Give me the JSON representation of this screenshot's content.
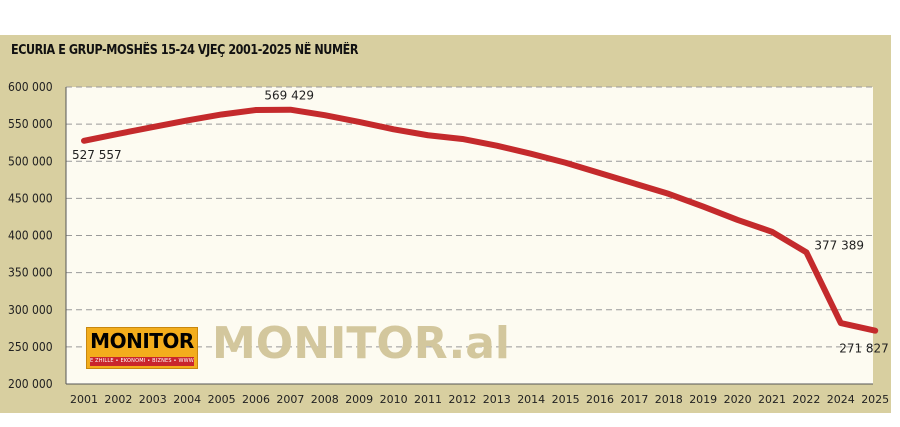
{
  "chart_data": {
    "type": "line",
    "title": "ECURIA E GRUP-MOSHËS 15-24 VJEÇ 2001-2025 NË NUMËR",
    "xlabel": "",
    "ylabel": "",
    "categories": [
      "2001",
      "2002",
      "2003",
      "2004",
      "2005",
      "2006",
      "2007",
      "2008",
      "2009",
      "2010",
      "2011",
      "2012",
      "2013",
      "2014",
      "2015",
      "2016",
      "2017",
      "2018",
      "2019",
      "2020",
      "2021",
      "2022",
      "2024",
      "2025"
    ],
    "series": [
      {
        "name": "",
        "values": [
          527557,
          537000,
          546000,
          555000,
          563000,
          569000,
          569429,
          562000,
          553000,
          543000,
          535000,
          530000,
          521000,
          510000,
          498000,
          484000,
          470000,
          456000,
          439000,
          421000,
          405000,
          377389,
          282000,
          271827
        ]
      }
    ],
    "ylim": [
      200000,
      600000
    ],
    "yticks": [
      200000,
      250000,
      300000,
      350000,
      400000,
      450000,
      500000,
      550000,
      600000
    ],
    "ytick_labels": [
      "200 000",
      "250 000",
      "300 000",
      "350 000",
      "400 000",
      "450 000",
      "500 000",
      "550 000",
      "600 000"
    ],
    "data_labels": [
      {
        "index": 0,
        "text": "527 557"
      },
      {
        "index": 6,
        "text": "569 429"
      },
      {
        "index": 21,
        "text": "377 389"
      },
      {
        "index": 23,
        "text": "271 827"
      }
    ],
    "grid": true,
    "legend": "none"
  },
  "colors": {
    "panel_background": "#d8cfa0",
    "plot_background": "#fdfbf1",
    "line": "#c42a2c",
    "gridline": "#9a9a9a",
    "logo_background": "#f3ad1c",
    "logo_strip": "#c9252c",
    "watermark": "#d3c79d"
  },
  "branding": {
    "logo_text": "MONITOR",
    "logo_subtext": "E ZHILLE • EKONOMI • BIZNES • WWW.MONITOR.AL",
    "watermark_text": "MONITOR.al"
  }
}
